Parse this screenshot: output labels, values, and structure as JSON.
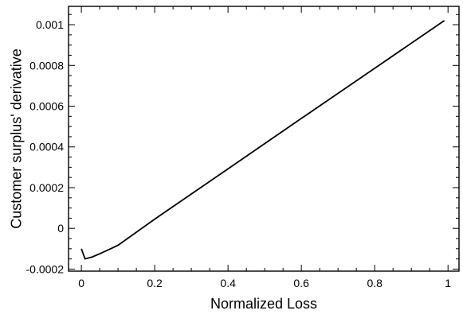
{
  "chart_data": {
    "type": "line",
    "title": "",
    "xlabel": "Normalized Loss",
    "ylabel": "Customer surplus' derivative",
    "xlim": [
      -0.035,
      1.03
    ],
    "ylim": [
      -0.00021,
      0.00109
    ],
    "x_ticks": [
      0,
      0.2,
      0.4,
      0.6,
      0.8,
      1
    ],
    "x_tick_labels": [
      "0",
      "0.2",
      "0.4",
      "0.6",
      "0.8",
      "1"
    ],
    "y_ticks": [
      -0.0002,
      0,
      0.0002,
      0.0004,
      0.0006,
      0.0008,
      0.001
    ],
    "y_tick_labels": [
      "-0.0002",
      "0",
      "0.0002",
      "0.0004",
      "0.0006",
      "0.0008",
      "0.001"
    ],
    "grid": false,
    "legend": "none",
    "series": [
      {
        "color": "#000000",
        "x": [
          0.0,
          0.01,
          0.03,
          0.05,
          0.08,
          0.1,
          0.2,
          0.4,
          0.6,
          0.8,
          0.99
        ],
        "y": [
          -0.0001,
          -0.00015,
          -0.00014,
          -0.000125,
          -0.0001,
          -8.3e-05,
          4.55e-05,
          0.000292,
          0.00054,
          0.000786,
          0.00102
        ]
      }
    ]
  }
}
